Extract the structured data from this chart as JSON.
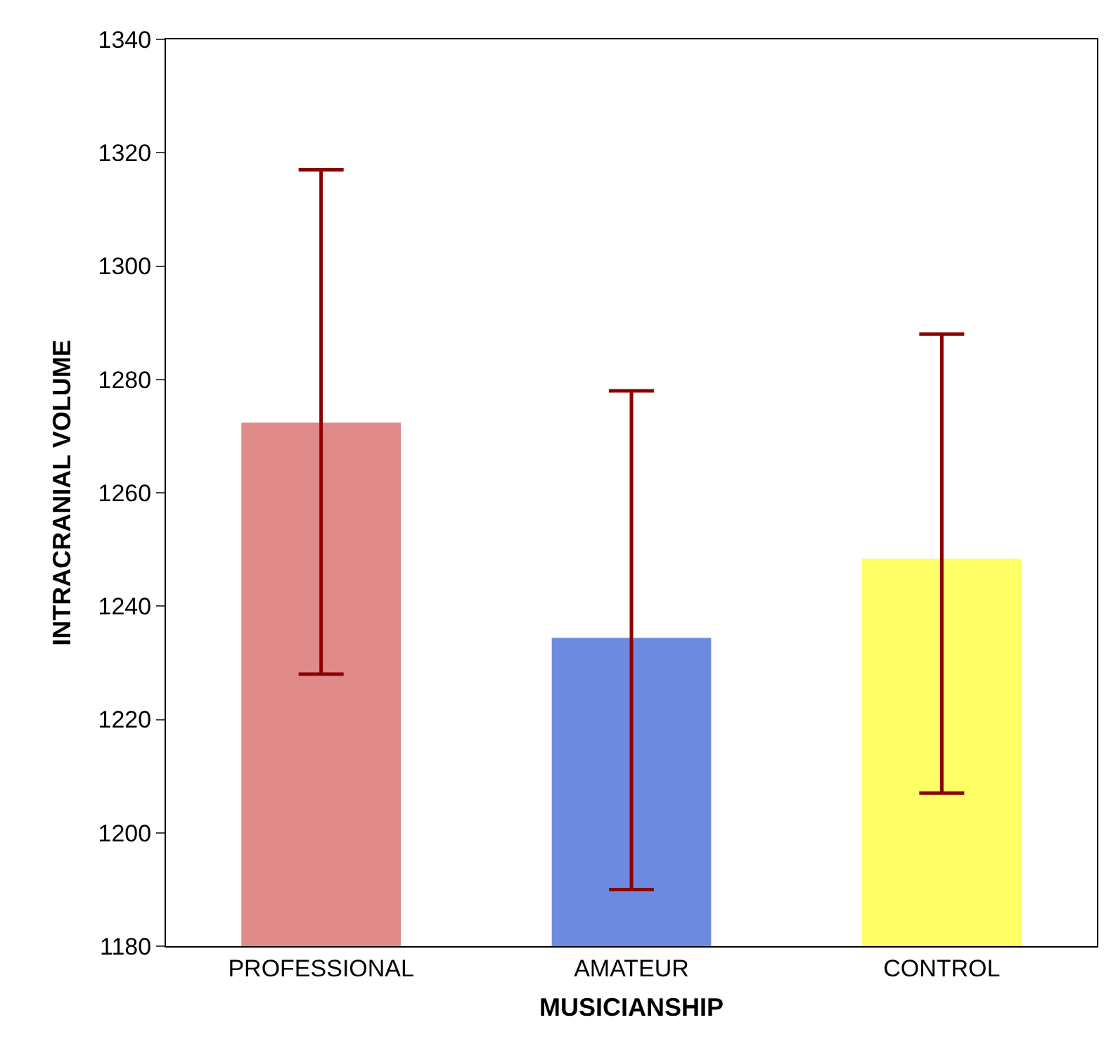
{
  "chart_data": {
    "type": "bar",
    "xlabel": "MUSICIANSHIP",
    "ylabel": "INTRACRANIAL VOLUME",
    "categories": [
      "PROFESSIONAL",
      "AMATEUR",
      "CONTROL"
    ],
    "values": [
      1272,
      1234,
      1248
    ],
    "colors": [
      "#e08a8a",
      "#6d8ae0",
      "#ffff66"
    ],
    "errors": [
      [
        1228,
        1317
      ],
      [
        1190,
        1278
      ],
      [
        1207,
        1288
      ]
    ],
    "ylim": [
      1180,
      1340
    ],
    "yticks": [
      1180,
      1200,
      1220,
      1240,
      1260,
      1280,
      1300,
      1320,
      1340
    ],
    "grid": false
  }
}
